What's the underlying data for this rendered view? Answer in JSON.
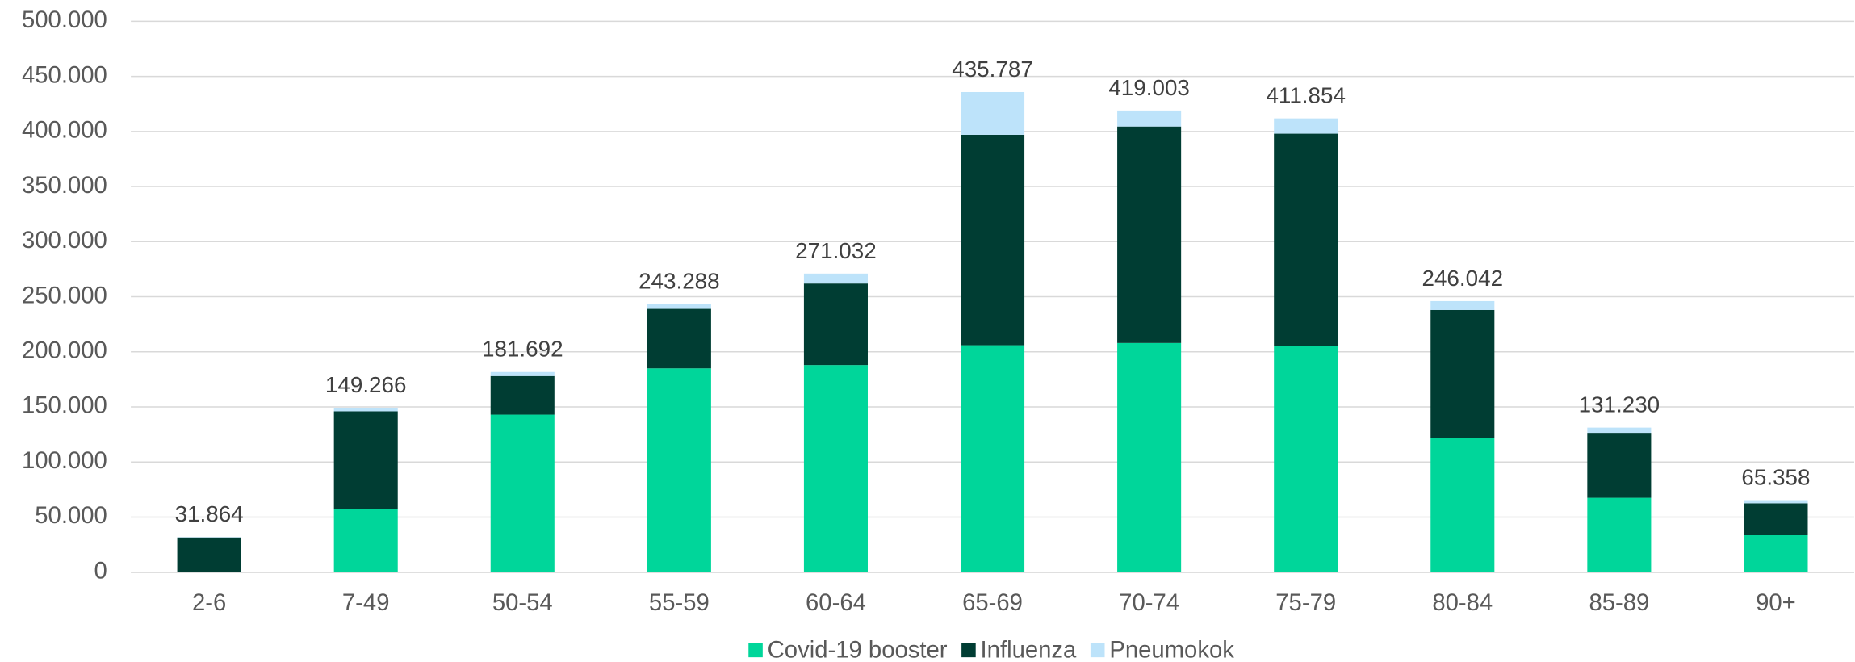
{
  "chart_data": {
    "type": "stacked_bar",
    "categories": [
      "2-6",
      "7-49",
      "50-54",
      "55-59",
      "60-64",
      "65-69",
      "70-74",
      "75-79",
      "80-84",
      "85-89",
      "90+"
    ],
    "series": [
      {
        "name": "Covid-19 booster",
        "color": "#00d69a",
        "values": [
          0,
          57000,
          143000,
          185000,
          188000,
          206000,
          208000,
          205000,
          122000,
          67500,
          33500
        ]
      },
      {
        "name": "Influenza",
        "color": "#003d33",
        "values": [
          31500,
          89000,
          35000,
          54000,
          74000,
          191000,
          196500,
          193000,
          116000,
          59000,
          29000
        ]
      },
      {
        "name": "Pneumokok",
        "color": "#bde3fa",
        "values": [
          364,
          3266,
          3692,
          4288,
          9032,
          38787,
          14503,
          13854,
          8042,
          4730,
          2858
        ]
      }
    ],
    "totals": {
      "values": [
        31864,
        149266,
        181692,
        243288,
        271032,
        435787,
        419003,
        411854,
        246042,
        131230,
        65358
      ],
      "value_labels": [
        "31.864",
        "149.266",
        "181.692",
        "243.288",
        "271.032",
        "435.787",
        "419.003",
        "411.854",
        "246.042",
        "131.230",
        "65.358"
      ]
    },
    "ylim": [
      0,
      500000
    ],
    "yticks": [
      0,
      {
        "value": 50000,
        "label": "50.000"
      },
      {
        "value": 100000,
        "label": "100.000"
      },
      {
        "value": 150000,
        "label": "150.000"
      },
      {
        "value": 200000,
        "label": "200.000"
      },
      {
        "value": 250000,
        "label": "250.000"
      },
      {
        "value": 300000,
        "label": "300.000"
      },
      {
        "value": 350000,
        "label": "350.000"
      },
      {
        "value": 400000,
        "label": "400.000"
      },
      {
        "value": 450000,
        "label": "450.000"
      },
      {
        "value": 500000,
        "label": "500.000"
      }
    ],
    "grid": true,
    "legend": "bottom"
  }
}
